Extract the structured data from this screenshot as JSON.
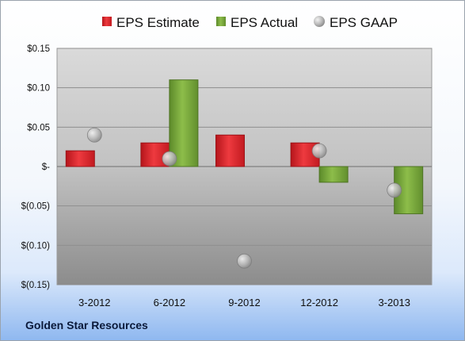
{
  "footer": {
    "company": "Golden Star Resources"
  },
  "legend": {
    "estimate": "EPS Estimate",
    "actual": "EPS Actual",
    "gaap": "EPS GAAP"
  },
  "colors": {
    "estimate": "#e21f26",
    "actual": "#79a53a",
    "gaap": "#b9bcc0",
    "plot_top": "#d9d9d9",
    "plot_bottom": "#8a8a8a"
  },
  "chart_data": {
    "type": "bar",
    "categories": [
      "3-2012",
      "6-2012",
      "9-2012",
      "12-2012",
      "3-2013"
    ],
    "series": [
      {
        "name": "EPS Estimate",
        "kind": "bar",
        "values": [
          0.02,
          0.03,
          0.04,
          0.03,
          null
        ]
      },
      {
        "name": "EPS Actual",
        "kind": "bar",
        "values": [
          null,
          0.11,
          null,
          -0.02,
          -0.06
        ]
      },
      {
        "name": "EPS GAAP",
        "kind": "marker",
        "values": [
          0.04,
          0.01,
          -0.12,
          0.02,
          -0.03
        ]
      }
    ],
    "ylim": [
      -0.15,
      0.15
    ],
    "yticks": [
      0.15,
      0.1,
      0.05,
      0,
      -0.05,
      -0.1,
      -0.15
    ],
    "ytick_labels": [
      "$0.15",
      "$0.10",
      "$0.05",
      "$-",
      "$(0.05)",
      "$(0.10)",
      "$(0.15)"
    ],
    "grid": true,
    "legend_position": "top"
  }
}
